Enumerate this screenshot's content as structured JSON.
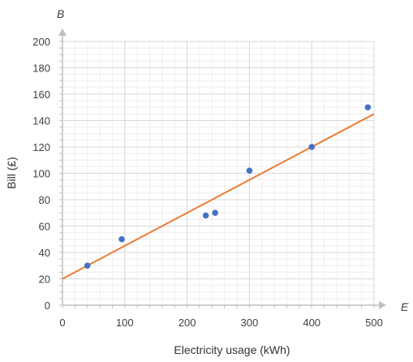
{
  "chart_data": {
    "type": "scatter",
    "xlabel": "Electricity usage (kWh)",
    "ylabel": "Bill (£)",
    "x_axis_var": "E",
    "y_axis_var": "B",
    "xlim": [
      0,
      500
    ],
    "ylim": [
      0,
      200
    ],
    "x_ticks": [
      "0",
      "100",
      "200",
      "300",
      "400",
      "500"
    ],
    "y_ticks": [
      "0",
      "20",
      "40",
      "60",
      "80",
      "100",
      "120",
      "140",
      "160",
      "180",
      "200"
    ],
    "grid": true,
    "series": [
      {
        "points": [
          {
            "x": 40,
            "y": 30
          },
          {
            "x": 95,
            "y": 50
          },
          {
            "x": 230,
            "y": 68
          },
          {
            "x": 245,
            "y": 70
          },
          {
            "x": 300,
            "y": 102
          },
          {
            "x": 400,
            "y": 120
          },
          {
            "x": 490,
            "y": 150
          }
        ]
      }
    ],
    "trendline": {
      "from": [
        0,
        20
      ],
      "to": [
        500,
        145
      ]
    },
    "colors": {
      "points": "#4472C4",
      "trendline": "#ED7D31",
      "grid_major": "#D9D9D9",
      "grid_minor": "#EFEFEF",
      "axis": "#BFBFBF"
    }
  }
}
